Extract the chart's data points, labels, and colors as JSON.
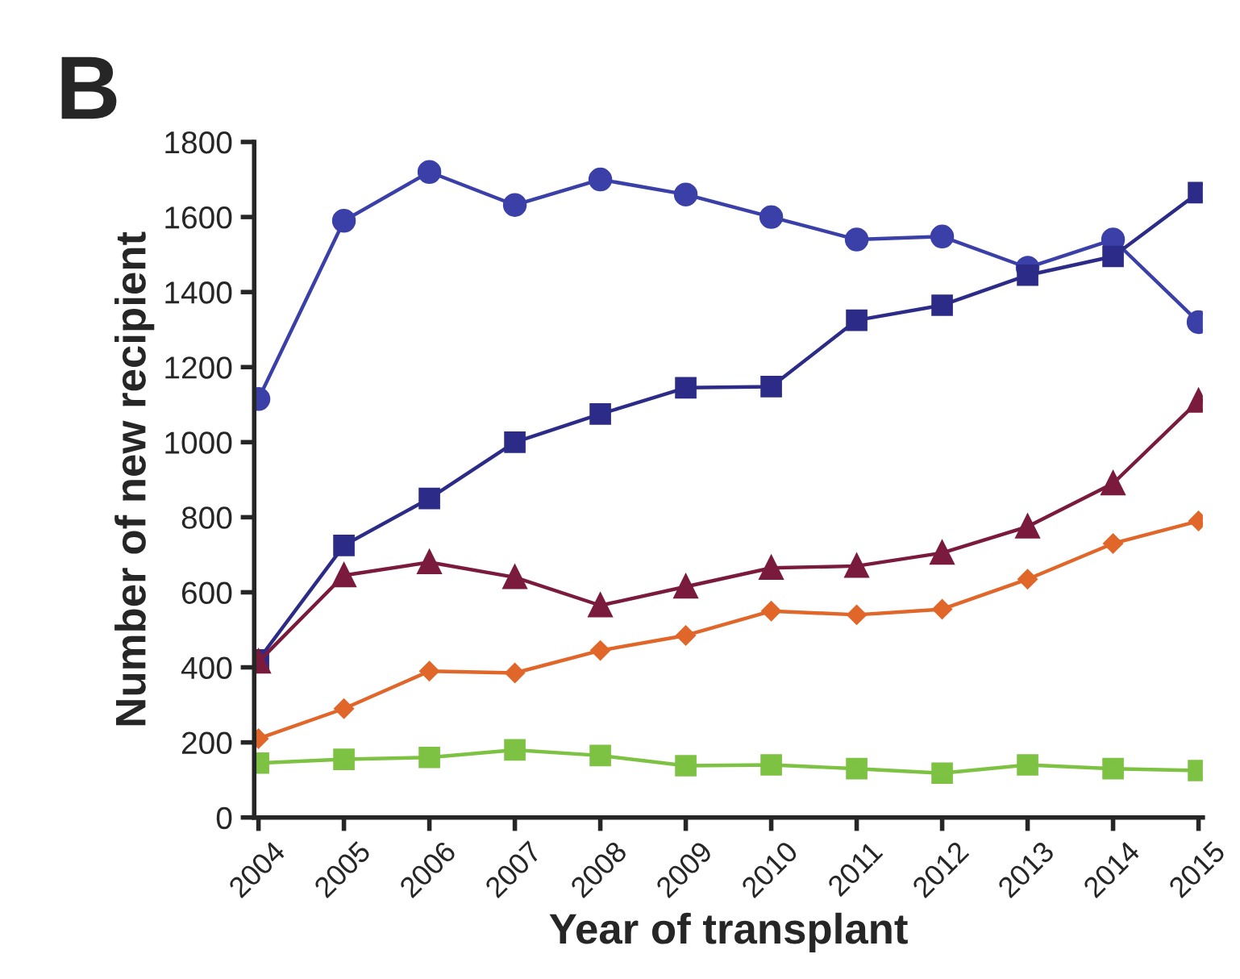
{
  "chart_data": {
    "type": "line",
    "title": "B",
    "xlabel": "Year of transplant",
    "ylabel": "Number of new recipient",
    "categories": [
      "2004",
      "2005",
      "2006",
      "2007",
      "2008",
      "2009",
      "2010",
      "2011",
      "2012",
      "2013",
      "2014",
      "2015"
    ],
    "ylim": [
      0,
      1800
    ],
    "yticks": [
      0,
      200,
      400,
      600,
      800,
      1000,
      1200,
      1400,
      1600,
      1800
    ],
    "grid": false,
    "legend": false,
    "line_style": "solid",
    "series": [
      {
        "color": "#3b40a8",
        "marker": "circle",
        "values": [
          1115,
          1590,
          1720,
          1632,
          1700,
          1660,
          1600,
          1540,
          1548,
          1465,
          1540,
          1320
        ]
      },
      {
        "color": "#2c2c88",
        "marker": "square",
        "values": [
          420,
          725,
          850,
          1000,
          1075,
          1145,
          1148,
          1325,
          1365,
          1445,
          1495,
          1665
        ]
      },
      {
        "color": "#7a1b3e",
        "marker": "triangle",
        "values": [
          415,
          645,
          680,
          640,
          565,
          615,
          665,
          670,
          705,
          775,
          890,
          1110
        ]
      },
      {
        "color": "#e0662a",
        "marker": "diamond",
        "values": [
          210,
          290,
          390,
          385,
          445,
          485,
          550,
          540,
          555,
          635,
          730,
          790
        ]
      },
      {
        "color": "#7dc242",
        "marker": "square",
        "values": [
          145,
          155,
          160,
          180,
          165,
          138,
          140,
          130,
          118,
          140,
          130,
          125
        ]
      }
    ]
  }
}
